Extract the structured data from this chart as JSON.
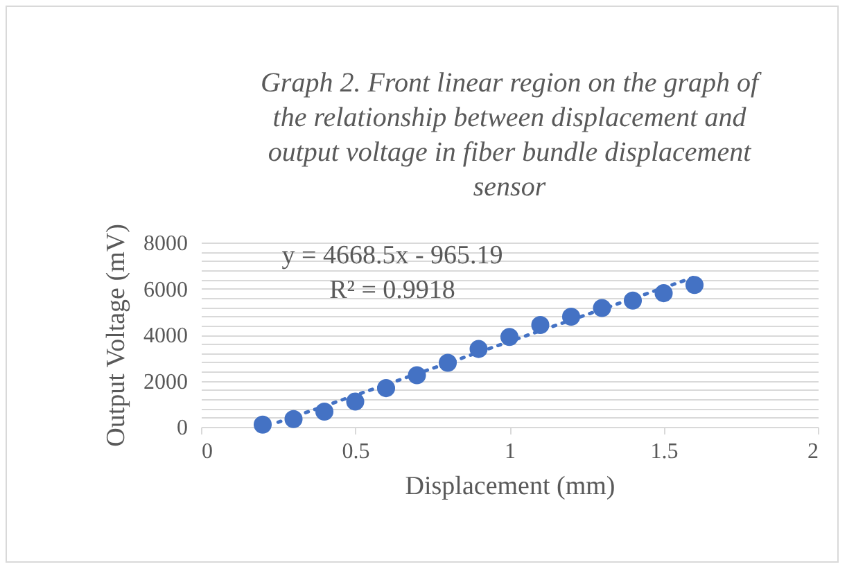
{
  "chart_data": {
    "type": "scatter",
    "title": "Graph 2. Front linear region on the graph of the relationship between displacement and output voltage in fiber bundle displacement sensor",
    "xlabel": "Displacement (mm)",
    "ylabel": "Output Voltage (mV)",
    "series": [
      {
        "color": "#4472c4",
        "marker": "circle",
        "x": [
          0.2,
          0.3,
          0.4,
          0.5,
          0.6,
          0.7,
          0.8,
          0.9,
          1.0,
          1.1,
          1.2,
          1.3,
          1.4,
          1.5,
          1.6
        ],
        "values": [
          100,
          340,
          660,
          1100,
          1680,
          2240,
          2780,
          3380,
          3900,
          4420,
          4780,
          5160,
          5480,
          5800,
          6160
        ]
      },
      {
        "type": "line",
        "color": "#4472c4",
        "line_style": "dotted",
        "x": [
          0.25,
          1.6
        ],
        "values": [
          202,
          6504
        ]
      }
    ],
    "annotations": [
      "y = 4668.5x - 965.19",
      "R² = 0.9918"
    ],
    "xlim": [
      0,
      2
    ],
    "xticks": [
      0,
      0.5,
      1,
      1.5,
      2
    ],
    "ylim": [
      0,
      8000
    ],
    "yticks": [
      0,
      {
        "value": 400,
        "label": null
      },
      {
        "value": 800,
        "label": null
      },
      {
        "value": 1200,
        "label": null
      },
      {
        "value": 1600,
        "label": null
      },
      2000,
      {
        "value": 2400,
        "label": null
      },
      {
        "value": 2800,
        "label": null
      },
      {
        "value": 3200,
        "label": null
      },
      {
        "value": 3600,
        "label": null
      },
      4000,
      {
        "value": 4400,
        "label": null
      },
      {
        "value": 4800,
        "label": null
      },
      {
        "value": 5200,
        "label": null
      },
      {
        "value": 5600,
        "label": null
      },
      6000,
      {
        "value": 6400,
        "label": null
      },
      {
        "value": 6800,
        "label": null
      },
      {
        "value": 7200,
        "label": null
      },
      {
        "value": 7600,
        "label": null
      },
      8000
    ],
    "grid": "y"
  }
}
